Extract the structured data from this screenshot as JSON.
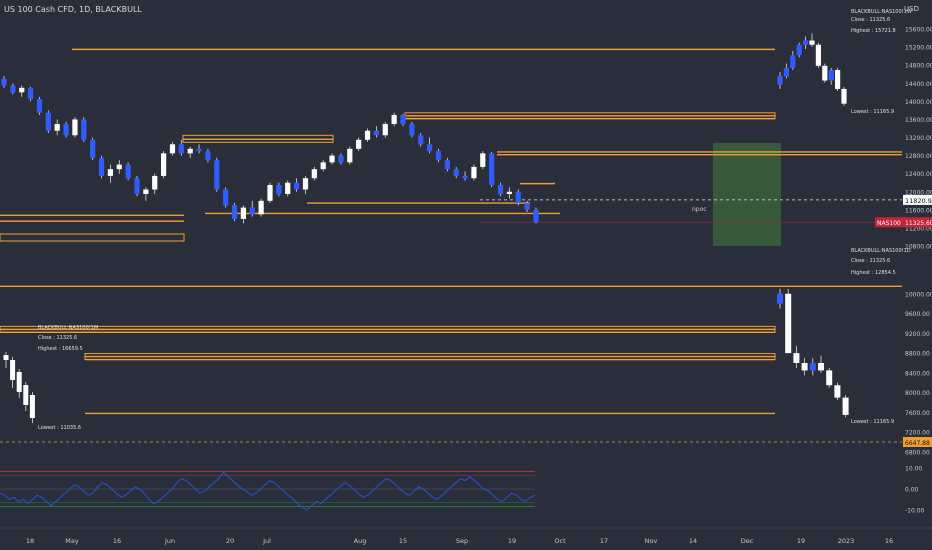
{
  "header": {
    "symbol_title": "US 100 Cash CFD, 1D, BLACKBULL"
  },
  "currency": "USD",
  "colors": {
    "background": "#2a2e3b",
    "level_line": "#f0a030",
    "bull_candle": "#ffffff",
    "bear_candle": "#2f5bff",
    "grid_dash": "#e8e8e8",
    "price_tag": "#c2253a",
    "npoc_zone": "#3a5f3c",
    "rsi_line": "#2552d8",
    "rsi_upper": "#c23a3a",
    "rsi_lower": "#2f8a3a"
  },
  "chart_data": [
    {
      "type": "candlestick",
      "name": "main_daily",
      "y_axis_ticks": [
        "15600.00",
        "15200.00",
        "14800.00",
        "14400.00",
        "14000.00",
        "13600.00",
        "13200.00",
        "12800.00",
        "12400.00",
        "12000.00",
        "11600.00",
        "11200.00",
        "10800.00"
      ],
      "ylim": [
        10800,
        15800
      ],
      "last_price_label": "11820.96",
      "symbol_tag": {
        "symbol": "NAS100",
        "price": "11325.60"
      },
      "annotation": "npoc",
      "levels": [
        15150,
        13680,
        13620,
        13160,
        12880,
        12820,
        12180,
        11750,
        11520,
        11480,
        11350
      ],
      "candles": [
        {
          "o": 14500,
          "h": 14560,
          "l": 14300,
          "c": 14350
        },
        {
          "o": 14350,
          "h": 14400,
          "l": 14150,
          "c": 14200
        },
        {
          "o": 14200,
          "h": 14350,
          "l": 14100,
          "c": 14300
        },
        {
          "o": 14300,
          "h": 14320,
          "l": 14000,
          "c": 14050
        },
        {
          "o": 14050,
          "h": 14100,
          "l": 13700,
          "c": 13750
        },
        {
          "o": 13750,
          "h": 13800,
          "l": 13300,
          "c": 13350
        },
        {
          "o": 13350,
          "h": 13600,
          "l": 13250,
          "c": 13500
        },
        {
          "o": 13500,
          "h": 13550,
          "l": 13200,
          "c": 13250
        },
        {
          "o": 13250,
          "h": 13650,
          "l": 13200,
          "c": 13600
        },
        {
          "o": 13600,
          "h": 13650,
          "l": 13100,
          "c": 13150
        },
        {
          "o": 13150,
          "h": 13200,
          "l": 12700,
          "c": 12750
        },
        {
          "o": 12750,
          "h": 12800,
          "l": 12300,
          "c": 12350
        },
        {
          "o": 12350,
          "h": 12600,
          "l": 12200,
          "c": 12500
        },
        {
          "o": 12500,
          "h": 12700,
          "l": 12400,
          "c": 12600
        },
        {
          "o": 12600,
          "h": 12650,
          "l": 12250,
          "c": 12300
        },
        {
          "o": 12300,
          "h": 12350,
          "l": 11900,
          "c": 11950
        },
        {
          "o": 11950,
          "h": 12100,
          "l": 11800,
          "c": 12050
        },
        {
          "o": 12050,
          "h": 12400,
          "l": 11950,
          "c": 12350
        },
        {
          "o": 12350,
          "h": 12900,
          "l": 12300,
          "c": 12850
        },
        {
          "o": 12850,
          "h": 13100,
          "l": 12800,
          "c": 13050
        },
        {
          "o": 13050,
          "h": 13150,
          "l": 12800,
          "c": 12850
        },
        {
          "o": 12850,
          "h": 13000,
          "l": 12750,
          "c": 12950
        },
        {
          "o": 12950,
          "h": 13050,
          "l": 12850,
          "c": 12900
        },
        {
          "o": 12900,
          "h": 12950,
          "l": 12650,
          "c": 12700
        },
        {
          "o": 12700,
          "h": 12750,
          "l": 12000,
          "c": 12050
        },
        {
          "o": 12050,
          "h": 12100,
          "l": 11650,
          "c": 11700
        },
        {
          "o": 11700,
          "h": 11750,
          "l": 11350,
          "c": 11400
        },
        {
          "o": 11400,
          "h": 11700,
          "l": 11300,
          "c": 11650
        },
        {
          "o": 11650,
          "h": 11800,
          "l": 11450,
          "c": 11500
        },
        {
          "o": 11500,
          "h": 11850,
          "l": 11450,
          "c": 11800
        },
        {
          "o": 11800,
          "h": 12200,
          "l": 11750,
          "c": 12150
        },
        {
          "o": 12150,
          "h": 12200,
          "l": 11900,
          "c": 11950
        },
        {
          "o": 11950,
          "h": 12250,
          "l": 11900,
          "c": 12200
        },
        {
          "o": 12200,
          "h": 12300,
          "l": 12000,
          "c": 12050
        },
        {
          "o": 12050,
          "h": 12350,
          "l": 11950,
          "c": 12300
        },
        {
          "o": 12300,
          "h": 12550,
          "l": 12250,
          "c": 12500
        },
        {
          "o": 12500,
          "h": 12700,
          "l": 12450,
          "c": 12650
        },
        {
          "o": 12650,
          "h": 12850,
          "l": 12600,
          "c": 12800
        },
        {
          "o": 12800,
          "h": 12850,
          "l": 12600,
          "c": 12650
        },
        {
          "o": 12650,
          "h": 13000,
          "l": 12600,
          "c": 12950
        },
        {
          "o": 12950,
          "h": 13200,
          "l": 12900,
          "c": 13150
        },
        {
          "o": 13150,
          "h": 13400,
          "l": 13100,
          "c": 13350
        },
        {
          "o": 13350,
          "h": 13450,
          "l": 13200,
          "c": 13250
        },
        {
          "o": 13250,
          "h": 13550,
          "l": 13200,
          "c": 13500
        },
        {
          "o": 13500,
          "h": 13750,
          "l": 13450,
          "c": 13700
        },
        {
          "o": 13700,
          "h": 13720,
          "l": 13450,
          "c": 13500
        },
        {
          "o": 13500,
          "h": 13550,
          "l": 13200,
          "c": 13250
        },
        {
          "o": 13250,
          "h": 13300,
          "l": 13000,
          "c": 13050
        },
        {
          "o": 13050,
          "h": 13200,
          "l": 12850,
          "c": 12900
        },
        {
          "o": 12900,
          "h": 12950,
          "l": 12650,
          "c": 12700
        },
        {
          "o": 12700,
          "h": 12750,
          "l": 12450,
          "c": 12500
        },
        {
          "o": 12500,
          "h": 12550,
          "l": 12300,
          "c": 12350
        },
        {
          "o": 12350,
          "h": 12450,
          "l": 12250,
          "c": 12300
        },
        {
          "o": 12300,
          "h": 12600,
          "l": 12250,
          "c": 12550
        },
        {
          "o": 12550,
          "h": 12900,
          "l": 12500,
          "c": 12850
        },
        {
          "o": 12850,
          "h": 12880,
          "l": 12100,
          "c": 12150
        },
        {
          "o": 12150,
          "h": 12200,
          "l": 11900,
          "c": 11950
        },
        {
          "o": 11950,
          "h": 12100,
          "l": 11850,
          "c": 12000
        },
        {
          "o": 12000,
          "h": 12050,
          "l": 11700,
          "c": 11750
        },
        {
          "o": 11750,
          "h": 11800,
          "l": 11550,
          "c": 11600
        },
        {
          "o": 11600,
          "h": 11650,
          "l": 11300,
          "c": 11326
        }
      ]
    },
    {
      "type": "candlestick",
      "name": "inset_weekly",
      "info": {
        "title": "BLACKBULL:NAS100!1W",
        "close": "Close : 11325.6",
        "high": "Highest : 15721.8",
        "low": "Lowest : 11165.9"
      },
      "candles": [
        {
          "o": 14500,
          "h": 14800,
          "l": 14400,
          "c": 14700
        },
        {
          "o": 14700,
          "h": 15000,
          "l": 14650,
          "c": 14900
        },
        {
          "o": 14900,
          "h": 15300,
          "l": 14850,
          "c": 15200
        },
        {
          "o": 15200,
          "h": 15500,
          "l": 15150,
          "c": 15450
        },
        {
          "o": 15450,
          "h": 15650,
          "l": 15350,
          "c": 15550
        },
        {
          "o": 15550,
          "h": 15720,
          "l": 15400,
          "c": 15450
        },
        {
          "o": 15450,
          "h": 15500,
          "l": 14900,
          "c": 14950
        },
        {
          "o": 14950,
          "h": 15000,
          "l": 14550,
          "c": 14600
        },
        {
          "o": 14600,
          "h": 14900,
          "l": 14500,
          "c": 14850
        },
        {
          "o": 14850,
          "h": 14900,
          "l": 14350,
          "c": 14400
        },
        {
          "o": 14400,
          "h": 14450,
          "l": 14000,
          "c": 14050
        }
      ]
    },
    {
      "type": "candlestick",
      "name": "inset_daily_lower",
      "info": {
        "title": "BLACKBULL:NAS100!1D",
        "close": "Close : 11325.6",
        "high": "Highest : 12854.5",
        "low": "Lowest : 11165.9"
      },
      "y_axis_ticks": [
        "10000.00",
        "9600.00",
        "9200.00",
        "8800.00",
        "8400.00",
        "8000.00",
        "7600.00",
        "7200.00",
        "6800.00"
      ],
      "ylim": [
        6800,
        10400
      ],
      "last_price_label": "6647.88",
      "levels": [
        10150,
        9280,
        9220,
        8730,
        8670,
        7580
      ],
      "candles": [
        {
          "o": 9800,
          "h": 10100,
          "l": 9700,
          "c": 10000
        },
        {
          "o": 10000,
          "h": 10100,
          "l": 8800,
          "c": 8800
        },
        {
          "o": 8800,
          "h": 8950,
          "l": 8500,
          "c": 8600
        },
        {
          "o": 8600,
          "h": 8700,
          "l": 8350,
          "c": 8450
        },
        {
          "o": 8450,
          "h": 8700,
          "l": 8350,
          "c": 8600
        },
        {
          "o": 8600,
          "h": 8750,
          "l": 8400,
          "c": 8450
        },
        {
          "o": 8450,
          "h": 8500,
          "l": 8100,
          "c": 8150
        },
        {
          "o": 8150,
          "h": 8200,
          "l": 7850,
          "c": 7900
        },
        {
          "o": 7900,
          "h": 7950,
          "l": 7500,
          "c": 7550
        }
      ]
    },
    {
      "type": "candlestick",
      "name": "inset_monthly",
      "info": {
        "title": "BLACKBULL:NAS100!1M",
        "close": "Close : 11325.6",
        "high": "Highest : 16659.5",
        "low": "Lowest : 11035.6"
      }
    },
    {
      "type": "line",
      "name": "oscillator",
      "y_axis_ticks": [
        "10.00",
        "0.00",
        "-10.00"
      ],
      "ylim": [
        -13,
        13
      ],
      "bands": [
        8.5,
        -8.5
      ],
      "values": [
        -2,
        -3,
        -5,
        -4,
        -6,
        -5,
        -7,
        -5,
        -3,
        -4,
        -6,
        -8,
        -6,
        -4,
        -2,
        0,
        2,
        1,
        -1,
        -3,
        -2,
        1,
        3,
        2,
        0,
        -2,
        -4,
        -3,
        -1,
        1,
        0,
        -2,
        -5,
        -7,
        -6,
        -4,
        -2,
        0,
        3,
        5,
        4,
        2,
        0,
        -2,
        -1,
        1,
        3,
        5,
        8,
        6,
        4,
        2,
        0,
        -1,
        -3,
        -2,
        0,
        2,
        4,
        3,
        1,
        -1,
        -3,
        -5,
        -7,
        -9,
        -10,
        -8,
        -6,
        -7,
        -5,
        -3,
        -1,
        1,
        3,
        2,
        0,
        -2,
        -4,
        -3,
        -1,
        1,
        3,
        5,
        4,
        2,
        0,
        -2,
        -3,
        -1,
        1,
        0,
        -2,
        -4,
        -5,
        -3,
        -1,
        1,
        3,
        5,
        4,
        6,
        4,
        2,
        0,
        -1,
        -3,
        -5,
        -6,
        -4,
        -2,
        -3,
        -5,
        -6,
        -4,
        -3
      ]
    }
  ],
  "x_axis": {
    "labels": [
      "18",
      "May",
      "16",
      "Jun",
      "20",
      "Jul",
      "Aug",
      "15",
      "Sep",
      "19",
      "Oct",
      "17",
      "Nov",
      "14",
      "Dec",
      "19",
      "2023",
      "16"
    ]
  }
}
